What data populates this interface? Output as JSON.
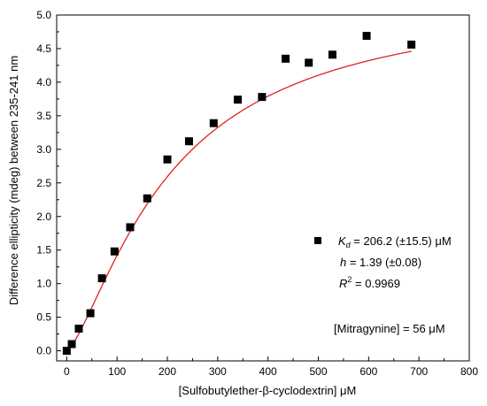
{
  "chart_data": {
    "type": "scatter",
    "xlabel": "[Sulfobutylether-β-cyclodextrin] μM",
    "ylabel": "Difference ellipticity (mdeg) between 235-241 nm",
    "xlim": [
      -20,
      800
    ],
    "ylim": [
      -0.15,
      5.0
    ],
    "x_ticks": [
      0,
      100,
      200,
      300,
      400,
      500,
      600,
      700,
      800
    ],
    "y_ticks": [
      0.0,
      0.5,
      1.0,
      1.5,
      2.0,
      2.5,
      3.0,
      3.5,
      4.0,
      4.5,
      5.0
    ],
    "y_tick_labels": [
      "0.0",
      "0.5",
      "1.0",
      "1.5",
      "2.0",
      "2.5",
      "3.0",
      "3.5",
      "4.0",
      "4.5",
      "5.0"
    ],
    "grid": false,
    "series": [
      {
        "kind": "points",
        "marker": "square",
        "color": "#000000",
        "x": [
          0,
          10,
          24,
          47,
          70,
          95,
          126,
          160,
          200,
          243,
          292,
          340,
          388,
          435,
          481,
          528,
          596,
          685
        ],
        "y": [
          0.0,
          0.1,
          0.33,
          0.56,
          1.08,
          1.48,
          1.84,
          2.27,
          2.85,
          3.12,
          3.39,
          3.74,
          3.78,
          4.35,
          4.29,
          4.41,
          4.69,
          4.56
        ]
      },
      {
        "kind": "fit",
        "color": "#e02020",
        "model": "hill",
        "Bmax": 5.3,
        "Kd": 206.2,
        "h": 1.39,
        "x_range": [
          0,
          685
        ]
      }
    ],
    "legend": {
      "position": "right",
      "kd_symbol": "K",
      "kd_subscript": "d",
      "kd_text": " = 206.2 (±15.5) μM",
      "h_symbol": "h",
      "h_text": " = 1.39 (±0.08)",
      "r2_symbol": "R",
      "r2_sup": "2",
      "r2_text": " = 0.9969",
      "concentration": "[Mitragynine] = 56 μM"
    }
  }
}
